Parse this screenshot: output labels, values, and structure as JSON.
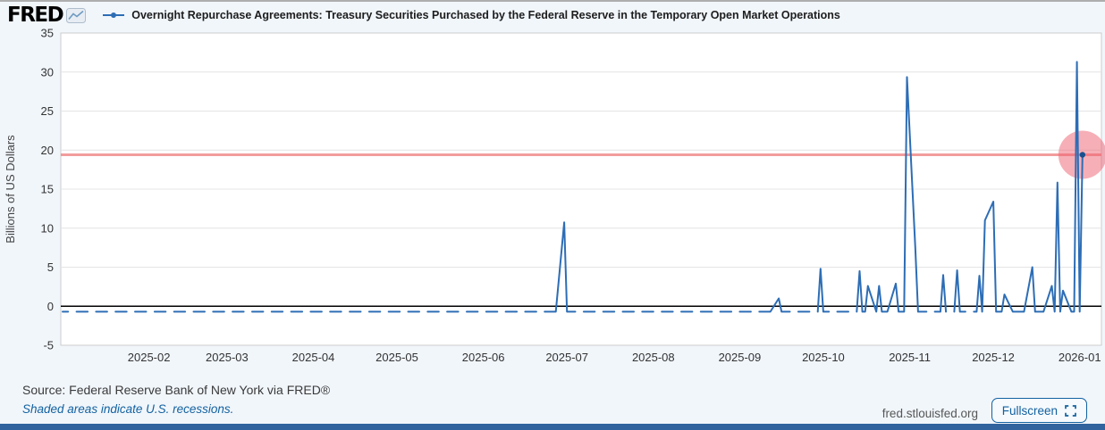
{
  "header": {
    "logo_text": "FRED",
    "legend_label": "Overnight Repurchase Agreements: Treasury Securities Purchased by the Federal Reserve in the Temporary Open Market Operations"
  },
  "footer": {
    "source_text": "Source: Federal Reserve Bank of New York via FRED®",
    "recession_note": "Shaded areas indicate U.S. recessions.",
    "site_label": "fred.stlouisfed.org",
    "fullscreen_label": "Fullscreen"
  },
  "chart_data": {
    "type": "line",
    "title": "Overnight Repurchase Agreements: Treasury Securities Purchased by the Federal Reserve in the Temporary Open Market Operations",
    "ylabel": "Billions of US Dollars",
    "ylim": [
      -5,
      35
    ],
    "yticks": [
      -5,
      0,
      5,
      10,
      15,
      20,
      25,
      30,
      35
    ],
    "xtick_labels": [
      "2025-02",
      "2025-03",
      "2025-04",
      "2025-05",
      "2025-06",
      "2025-07",
      "2025-08",
      "2025-09",
      "2025-10",
      "2025-11",
      "2025-12",
      "2026-01"
    ],
    "x_range": [
      "2025-01-01",
      "2026-01-02"
    ],
    "frequency": "daily-weekdays",
    "baseline_value": -0.7,
    "baseline_note": "near-zero weekday observations drawn as short dashes (weekend gaps)",
    "spikes": [
      {
        "date": "2025-06-30",
        "value": 10.75
      },
      {
        "date": "2025-09-15",
        "value": 1.0
      },
      {
        "date": "2025-09-30",
        "value": 4.8
      },
      {
        "date": "2025-10-14",
        "value": 4.5
      },
      {
        "date": "2025-10-17",
        "value": 2.6
      },
      {
        "date": "2025-10-21",
        "value": 2.6
      },
      {
        "date": "2025-10-27",
        "value": 2.9
      },
      {
        "date": "2025-10-31",
        "value": 29.35
      },
      {
        "date": "2025-11-03",
        "value": 7.5
      },
      {
        "date": "2025-11-13",
        "value": 4.0
      },
      {
        "date": "2025-11-18",
        "value": 4.6
      },
      {
        "date": "2025-11-26",
        "value": 3.9
      },
      {
        "date": "2025-11-28",
        "value": 11.0
      },
      {
        "date": "2025-12-01",
        "value": 13.4
      },
      {
        "date": "2025-12-05",
        "value": 1.5
      },
      {
        "date": "2025-12-15",
        "value": 5.0
      },
      {
        "date": "2025-12-22",
        "value": 2.6
      },
      {
        "date": "2025-12-24",
        "value": 15.85
      },
      {
        "date": "2025-12-26",
        "value": 2.0
      },
      {
        "date": "2025-12-31",
        "value": 31.3
      },
      {
        "date": "2026-01-02",
        "value": 19.4
      }
    ],
    "last_point": {
      "date": "2026-01-02",
      "value": 19.4
    },
    "reference_line_value": 19.4,
    "legend_position": "top",
    "grid": "horizontal-only",
    "colors": {
      "line": "#2d6db5",
      "marker": "#17508f",
      "reference_line": "#f08b8b",
      "highlight_circle": "#ee5f6f",
      "zero_line": "#000000",
      "grid": "#e4e4e4",
      "plot_border": "#cccccc",
      "accent_blue": "#1261a0"
    }
  }
}
